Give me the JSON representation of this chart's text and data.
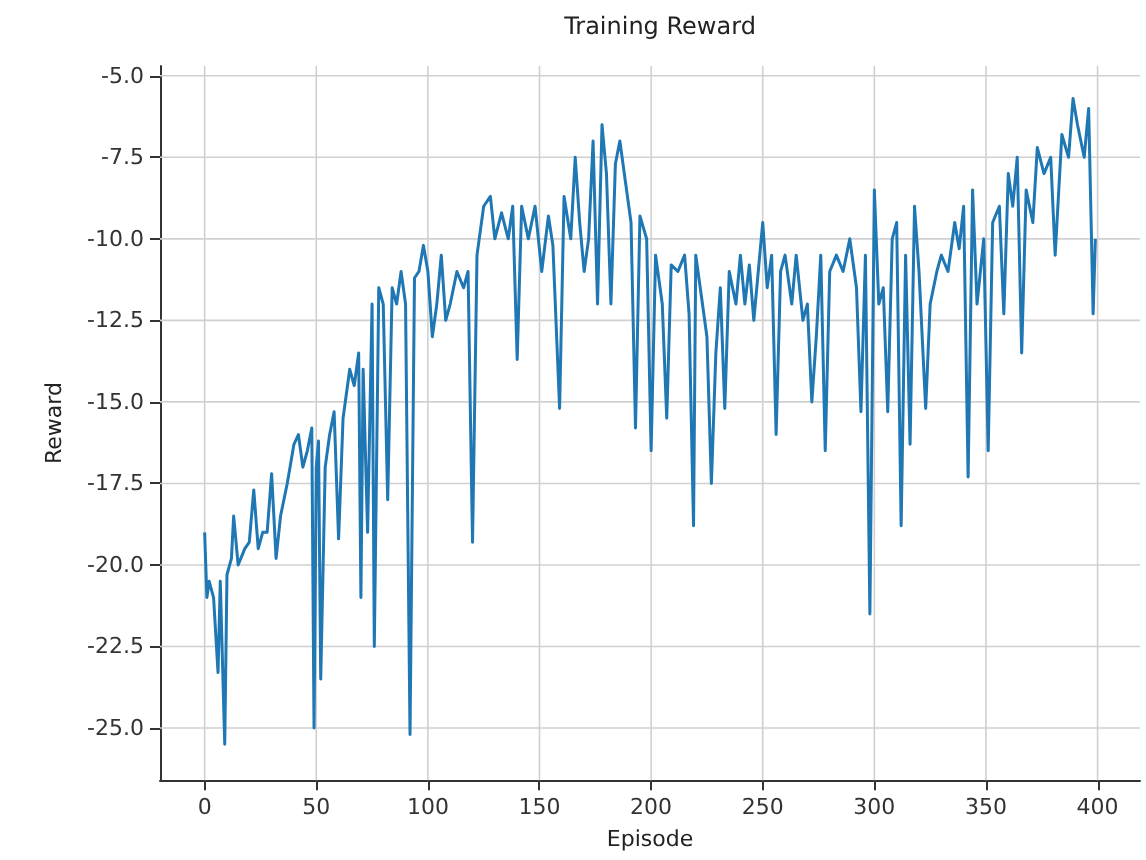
{
  "chart_data": {
    "type": "line",
    "title": "Training Reward",
    "xlabel": "Episode",
    "ylabel": "Reward",
    "grid": true,
    "marker": "none",
    "line_style": "solid",
    "xlim": [
      -20,
      419
    ],
    "xticks": [
      0,
      50,
      100,
      150,
      200,
      250,
      300,
      350,
      400
    ],
    "ylim": [
      -26.6,
      -4.7
    ],
    "yticks": [
      {
        "value": -25,
        "label": "-25.0"
      },
      {
        "value": -22.5,
        "label": "-22.5"
      },
      {
        "value": -20,
        "label": "-20.0"
      },
      {
        "value": -17.5,
        "label": "-17.5"
      },
      {
        "value": -15,
        "label": "-15.0"
      },
      {
        "value": -12.5,
        "label": "-12.5"
      },
      {
        "value": -10,
        "label": "-10.0"
      },
      {
        "value": -7.5,
        "label": "-7.5"
      },
      {
        "value": -5,
        "label": "-5.0"
      }
    ],
    "series": [
      {
        "color": "#1f77b4",
        "x": [
          0,
          1,
          2,
          4,
          6,
          7,
          9,
          10,
          12,
          13,
          15,
          18,
          20,
          22,
          24,
          26,
          28,
          30,
          32,
          34,
          37,
          40,
          42,
          44,
          46,
          48,
          49,
          50,
          51,
          52,
          54,
          56,
          58,
          60,
          62,
          65,
          67,
          69,
          70,
          71,
          73,
          75,
          76,
          78,
          80,
          82,
          84,
          86,
          88,
          90,
          92,
          94,
          96,
          98,
          100,
          102,
          104,
          106,
          108,
          110,
          113,
          116,
          118,
          120,
          122,
          125,
          128,
          130,
          133,
          136,
          138,
          140,
          142,
          145,
          148,
          151,
          154,
          156,
          159,
          161,
          164,
          166,
          168,
          170,
          172,
          174,
          176,
          178,
          180,
          182,
          184,
          186,
          189,
          191,
          193,
          195,
          198,
          200,
          202,
          205,
          207,
          209,
          212,
          215,
          217,
          219,
          220,
          223,
          225,
          227,
          229,
          231,
          233,
          235,
          238,
          240,
          242,
          244,
          246,
          248,
          250,
          252,
          254,
          256,
          258,
          260,
          263,
          265,
          268,
          270,
          272,
          274,
          276,
          278,
          280,
          283,
          286,
          289,
          292,
          294,
          296,
          298,
          300,
          302,
          304,
          306,
          308,
          310,
          312,
          314,
          316,
          318,
          320,
          323,
          325,
          328,
          330,
          333,
          336,
          338,
          340,
          342,
          344,
          346,
          349,
          351,
          353,
          356,
          358,
          360,
          362,
          364,
          366,
          368,
          371,
          373,
          376,
          379,
          381,
          384,
          387,
          389,
          391,
          394,
          396,
          398,
          399
        ],
        "values": [
          -19.0,
          -21.0,
          -20.5,
          -21.0,
          -23.3,
          -20.5,
          -25.5,
          -20.3,
          -19.8,
          -18.5,
          -20.0,
          -19.5,
          -19.3,
          -17.7,
          -19.5,
          -19.0,
          -19.0,
          -17.2,
          -19.8,
          -18.5,
          -17.5,
          -16.3,
          -16.0,
          -17.0,
          -16.5,
          -15.8,
          -25.0,
          -17.0,
          -16.2,
          -23.5,
          -17.0,
          -16.0,
          -15.3,
          -19.2,
          -15.5,
          -14.0,
          -14.5,
          -13.5,
          -21.0,
          -14.0,
          -19.0,
          -12.0,
          -22.5,
          -11.5,
          -12.0,
          -18.0,
          -11.5,
          -12.0,
          -11.0,
          -12.0,
          -25.2,
          -11.2,
          -11.0,
          -10.2,
          -11.0,
          -13.0,
          -12.0,
          -10.5,
          -12.5,
          -12.0,
          -11.0,
          -11.5,
          -11.0,
          -19.3,
          -10.5,
          -9.0,
          -8.7,
          -10.0,
          -9.2,
          -10.0,
          -9.0,
          -13.7,
          -9.0,
          -10.0,
          -9.0,
          -11.0,
          -9.3,
          -10.2,
          -15.2,
          -8.7,
          -10.0,
          -7.5,
          -9.5,
          -11.0,
          -10.0,
          -7.0,
          -12.0,
          -6.5,
          -8.0,
          -12.0,
          -7.7,
          -7.0,
          -8.5,
          -9.5,
          -15.8,
          -9.3,
          -10.0,
          -16.5,
          -10.5,
          -12.0,
          -15.5,
          -10.8,
          -11.0,
          -10.5,
          -12.3,
          -18.8,
          -10.5,
          -12.0,
          -13.0,
          -17.5,
          -13.5,
          -11.5,
          -15.2,
          -11.0,
          -12.0,
          -10.5,
          -12.0,
          -10.8,
          -12.5,
          -11.0,
          -9.5,
          -11.5,
          -10.5,
          -16.0,
          -11.0,
          -10.5,
          -12.0,
          -10.5,
          -12.5,
          -12.0,
          -15.0,
          -13.0,
          -10.5,
          -16.5,
          -11.0,
          -10.5,
          -11.0,
          -10.0,
          -11.5,
          -15.3,
          -10.5,
          -21.5,
          -8.5,
          -12.0,
          -11.5,
          -15.3,
          -10.0,
          -9.5,
          -18.8,
          -10.5,
          -16.3,
          -9.0,
          -11.0,
          -15.2,
          -12.0,
          -11.0,
          -10.5,
          -11.0,
          -9.5,
          -10.3,
          -9.0,
          -17.3,
          -8.5,
          -12.0,
          -10.0,
          -16.5,
          -9.5,
          -9.0,
          -12.3,
          -8.0,
          -9.0,
          -7.5,
          -13.5,
          -8.5,
          -9.5,
          -7.2,
          -8.0,
          -7.5,
          -10.5,
          -6.8,
          -7.5,
          -5.7,
          -6.5,
          -7.5,
          -6.0,
          -12.3,
          -10.0
        ]
      }
    ]
  }
}
